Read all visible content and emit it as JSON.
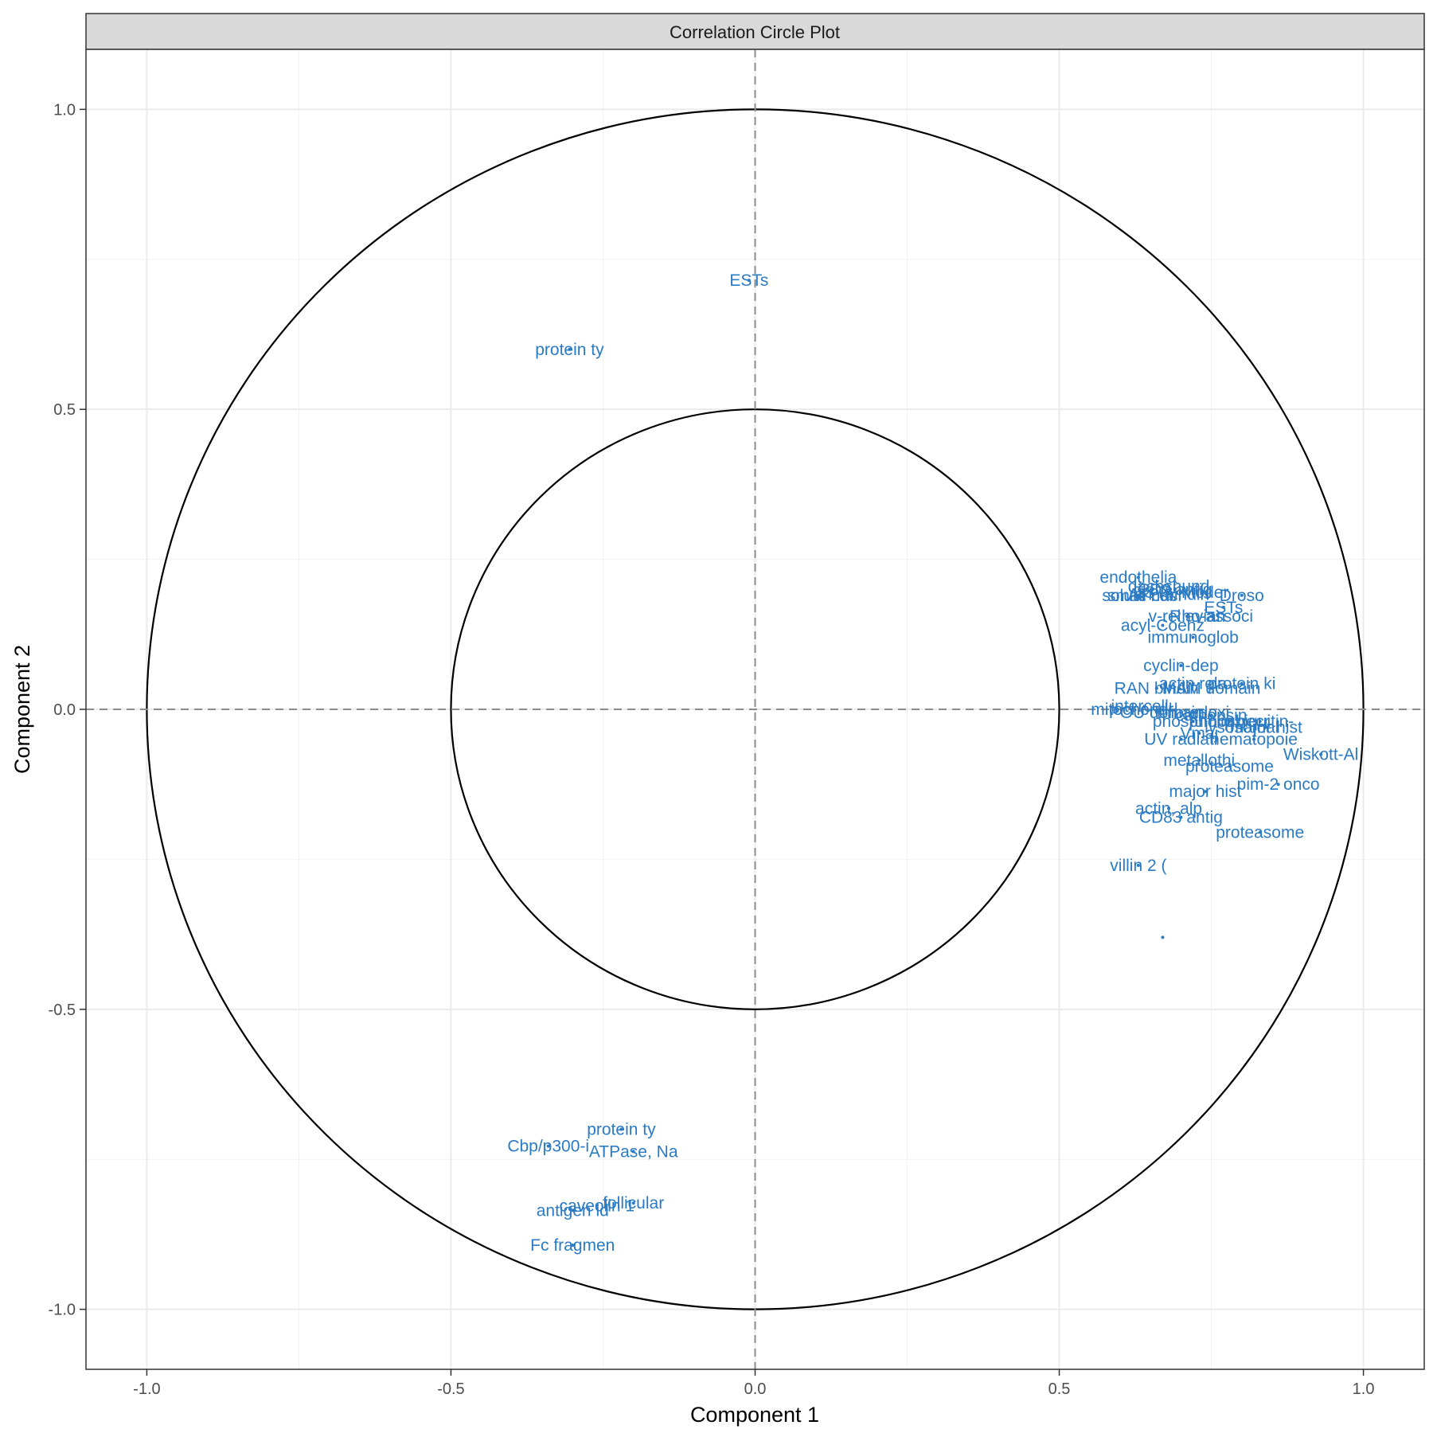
{
  "chart_data": {
    "type": "scatter",
    "title": "Correlation Circle Plot",
    "xlabel": "Component  1",
    "ylabel": "Component  2",
    "xlim": [
      -1.1,
      1.1
    ],
    "ylim": [
      -1.1,
      1.1
    ],
    "x_ticks": [
      -1.0,
      -0.5,
      0.0,
      0.5,
      1.0
    ],
    "y_ticks": [
      -1.0,
      -0.5,
      0.0,
      0.5,
      1.0
    ],
    "x_tick_labels": [
      "-1.0",
      "-0.5",
      "0.0",
      "0.5",
      "1.0"
    ],
    "y_tick_labels": [
      "-1.0",
      "-0.5",
      "0.0",
      "0.5",
      "1.0"
    ],
    "circles": [
      {
        "radius": 1.0
      },
      {
        "radius": 0.5
      }
    ],
    "reference_lines": [
      {
        "axis": "x",
        "value": 0
      },
      {
        "axis": "y",
        "value": 0
      }
    ],
    "grid": true,
    "legend": "none",
    "point_color": "#2b7bc4",
    "points": [
      {
        "label": "ESTs",
        "x": -0.01,
        "y": 0.715
      },
      {
        "label": "protein ty",
        "x": -0.305,
        "y": 0.6
      },
      {
        "label": "endothelia",
        "x": 0.63,
        "y": 0.22
      },
      {
        "label": "dachshund",
        "x": 0.68,
        "y": 0.205
      },
      {
        "label": "solute car",
        "x": 0.63,
        "y": 0.19
      },
      {
        "label": "small nucl",
        "x": 0.64,
        "y": 0.19
      },
      {
        "label": "CD9 antig",
        "x": 0.69,
        "y": 0.2
      },
      {
        "label": "ESTs, Moder",
        "x": 0.7,
        "y": 0.195
      },
      {
        "label": "ATP-bindin",
        "x": 0.68,
        "y": 0.192
      },
      {
        "label": "Droso",
        "x": 0.8,
        "y": 0.19
      },
      {
        "label": "ESTs",
        "x": 0.77,
        "y": 0.17
      },
      {
        "label": "v-rel avian",
        "x": 0.71,
        "y": 0.155
      },
      {
        "label": "Rho-associ",
        "x": 0.75,
        "y": 0.155
      },
      {
        "label": "acyl-Coenz",
        "x": 0.67,
        "y": 0.14
      },
      {
        "label": "immunoglob",
        "x": 0.72,
        "y": 0.12
      },
      {
        "label": "cyclin-dep",
        "x": 0.7,
        "y": 0.073
      },
      {
        "label": "actin rela",
        "x": 0.72,
        "y": 0.043
      },
      {
        "label": "protein ki",
        "x": 0.8,
        "y": 0.043
      },
      {
        "label": "RAN bindin",
        "x": 0.66,
        "y": 0.035
      },
      {
        "label": "MAM domain",
        "x": 0.75,
        "y": 0.035
      },
      {
        "label": "intercellu",
        "x": 0.64,
        "y": 0.005
      },
      {
        "label": "mitochondr",
        "x": 0.62,
        "y": 0.0
      },
      {
        "label": "POU domain",
        "x": 0.66,
        "y": -0.005
      },
      {
        "label": "thioredoxi",
        "x": 0.72,
        "y": -0.005
      },
      {
        "label": "cathepsin",
        "x": 0.75,
        "y": -0.01
      },
      {
        "label": "phospholip",
        "x": 0.72,
        "y": -0.02
      },
      {
        "label": "tumor necr",
        "x": 0.78,
        "y": -0.02
      },
      {
        "label": "ubiquitin-",
        "x": 0.83,
        "y": -0.02
      },
      {
        "label": "lysosomal",
        "x": 0.8,
        "y": -0.03
      },
      {
        "label": "major hist",
        "x": 0.84,
        "y": -0.03
      },
      {
        "label": "Vmaj",
        "x": 0.73,
        "y": -0.04
      },
      {
        "label": "UV radiati",
        "x": 0.7,
        "y": -0.05
      },
      {
        "label": "hematopoie",
        "x": 0.82,
        "y": -0.05
      },
      {
        "label": "Wiskott-Al",
        "x": 0.93,
        "y": -0.075
      },
      {
        "label": "metallothi",
        "x": 0.73,
        "y": -0.085
      },
      {
        "label": "proteasome",
        "x": 0.78,
        "y": -0.095
      },
      {
        "label": "pim-2 onco",
        "x": 0.86,
        "y": -0.125
      },
      {
        "label": "major hist",
        "x": 0.74,
        "y": -0.137
      },
      {
        "label": "actin, alp",
        "x": 0.68,
        "y": -0.165
      },
      {
        "label": "CD83 antig",
        "x": 0.7,
        "y": -0.18
      },
      {
        "label": "proteasome",
        "x": 0.83,
        "y": -0.205
      },
      {
        "label": "villin 2 (",
        "x": 0.63,
        "y": -0.26
      },
      {
        "label": "",
        "x": 0.67,
        "y": -0.38
      },
      {
        "label": "protein ty",
        "x": -0.22,
        "y": -0.7
      },
      {
        "label": "Cbp/p300-i",
        "x": -0.34,
        "y": -0.728
      },
      {
        "label": "ATPase, Na",
        "x": -0.2,
        "y": -0.737
      },
      {
        "label": "caveolin 1",
        "x": -0.26,
        "y": -0.827
      },
      {
        "label": "follicular",
        "x": -0.2,
        "y": -0.823
      },
      {
        "label": "antigen id",
        "x": -0.3,
        "y": -0.835
      },
      {
        "label": "Fc fragmen",
        "x": -0.3,
        "y": -0.893
      }
    ]
  }
}
